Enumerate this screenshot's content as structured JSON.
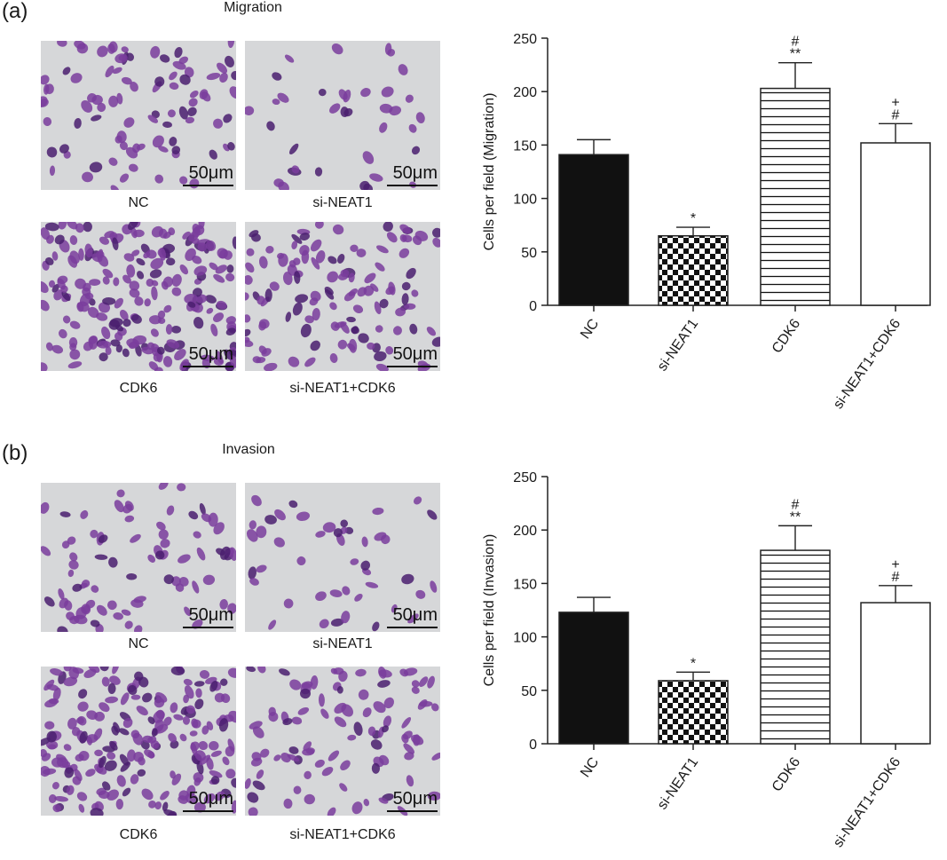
{
  "panels": [
    {
      "label": "(a)",
      "title": "Migration",
      "images": [
        {
          "caption": "NC",
          "scale": "50μm",
          "density": 90
        },
        {
          "caption": "si-NEAT1",
          "scale": "50μm",
          "density": 36
        },
        {
          "caption": "CDK6",
          "scale": "50μm",
          "density": 210
        },
        {
          "caption": "si-NEAT1+CDK6",
          "scale": "50μm",
          "density": 120
        }
      ]
    },
    {
      "label": "(b)",
      "title": "Invasion",
      "images": [
        {
          "caption": "NC",
          "scale": "50μm",
          "density": 80
        },
        {
          "caption": "si-NEAT1",
          "scale": "50μm",
          "density": 45
        },
        {
          "caption": "CDK6",
          "scale": "50μm",
          "density": 200
        },
        {
          "caption": "si-NEAT1+CDK6",
          "scale": "50μm",
          "density": 95
        }
      ]
    }
  ],
  "colors": {
    "cell": "#7a3d9c",
    "cell_dark": "#4a1f6e",
    "background": "#d6d7d9",
    "bar_fill": "#111111"
  },
  "chart_data": [
    {
      "type": "bar",
      "categories": [
        "NC",
        "si-NEAT1",
        "CDK6",
        "si-NEAT1+CDK6"
      ],
      "values": [
        141,
        65,
        203,
        152
      ],
      "errors": [
        14,
        8,
        24,
        18
      ],
      "annotations": [
        [],
        [
          "*"
        ],
        [
          "**",
          "#"
        ],
        [
          "#",
          "+"
        ]
      ],
      "patterns": [
        "solid",
        "checker",
        "hlines",
        "empty"
      ],
      "xlabel": "",
      "ylabel": "Cells per field (Migration)",
      "ylim": [
        0,
        250
      ],
      "yticks": [
        0,
        50,
        100,
        150,
        200,
        250
      ],
      "grid": false
    },
    {
      "type": "bar",
      "categories": [
        "NC",
        "si-NEAT1",
        "CDK6",
        "si-NEAT1+CDK6"
      ],
      "values": [
        123,
        59,
        181,
        132
      ],
      "errors": [
        14,
        8,
        23,
        16
      ],
      "annotations": [
        [],
        [
          "*"
        ],
        [
          "**",
          "#"
        ],
        [
          "#",
          "+"
        ]
      ],
      "patterns": [
        "solid",
        "checker",
        "hlines",
        "empty"
      ],
      "xlabel": "",
      "ylabel": "Cells per field (Invasion)",
      "ylim": [
        0,
        250
      ],
      "yticks": [
        0,
        50,
        100,
        150,
        200,
        250
      ],
      "grid": false
    }
  ]
}
